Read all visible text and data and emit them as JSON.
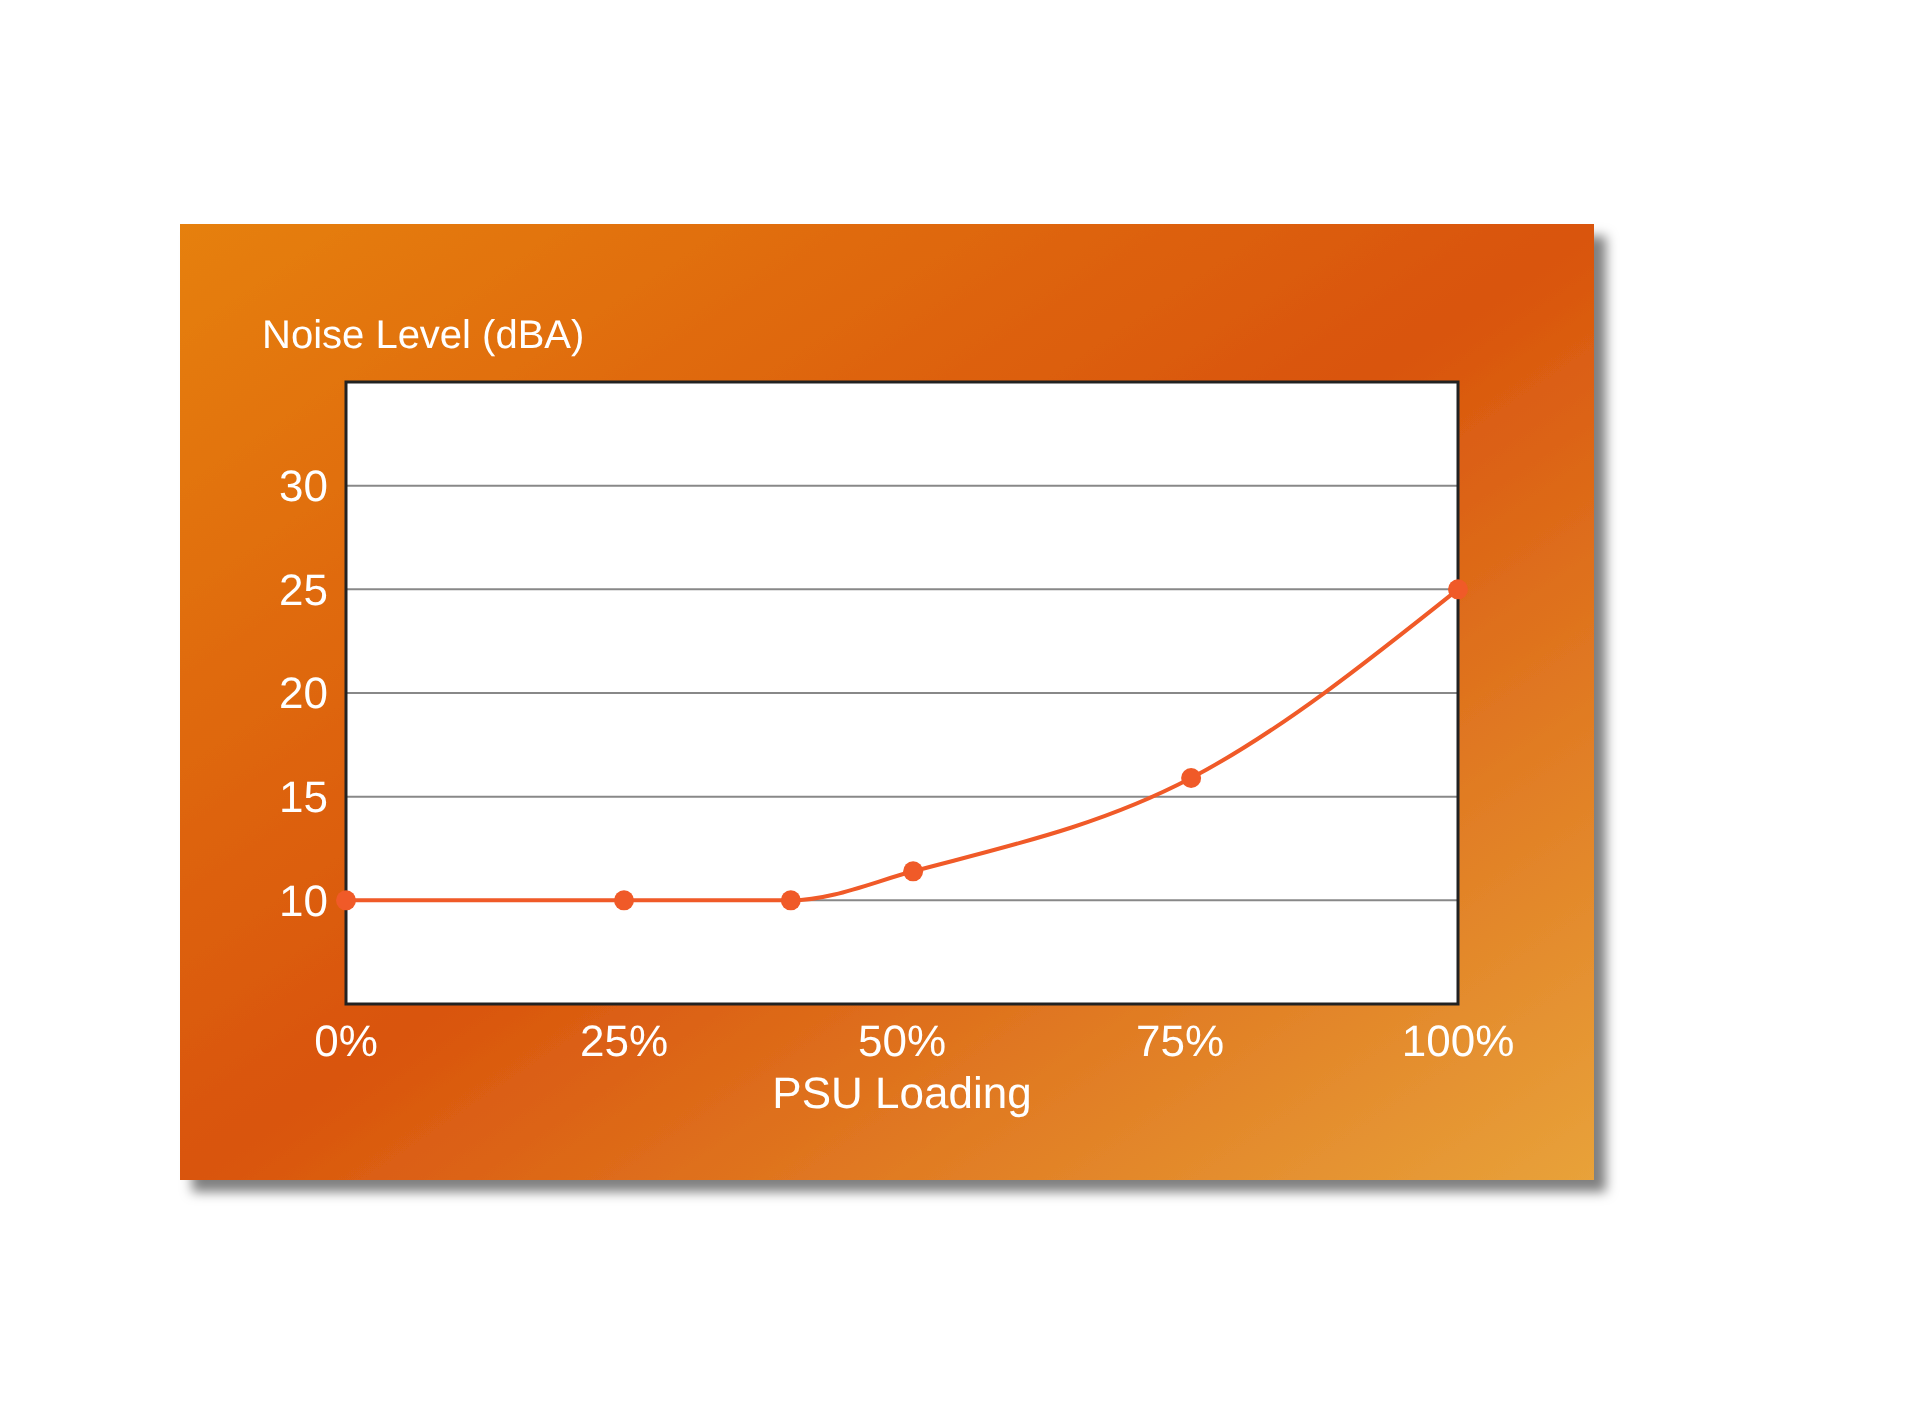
{
  "chart_data": {
    "type": "line",
    "xlabel": "PSU Loading",
    "ylabel": "Noise Level (dBA)",
    "x": [
      0,
      25,
      40,
      51,
      76,
      100
    ],
    "series": [
      {
        "color": "#f05a28",
        "values": [
          10,
          10,
          10,
          11.4,
          15.9,
          25
        ]
      }
    ],
    "xlim": [
      0,
      100
    ],
    "xticks": [
      {
        "value": 0,
        "label": "0%"
      },
      {
        "value": 25,
        "label": "25%"
      },
      {
        "value": 50,
        "label": "50%"
      },
      {
        "value": 75,
        "label": "75%"
      },
      {
        "value": 100,
        "label": "100%"
      }
    ],
    "ylim": [
      5,
      35
    ],
    "yticks": [
      10,
      15,
      20,
      25,
      30
    ],
    "grid": "y",
    "marker": "circle",
    "line_style": "solid"
  }
}
